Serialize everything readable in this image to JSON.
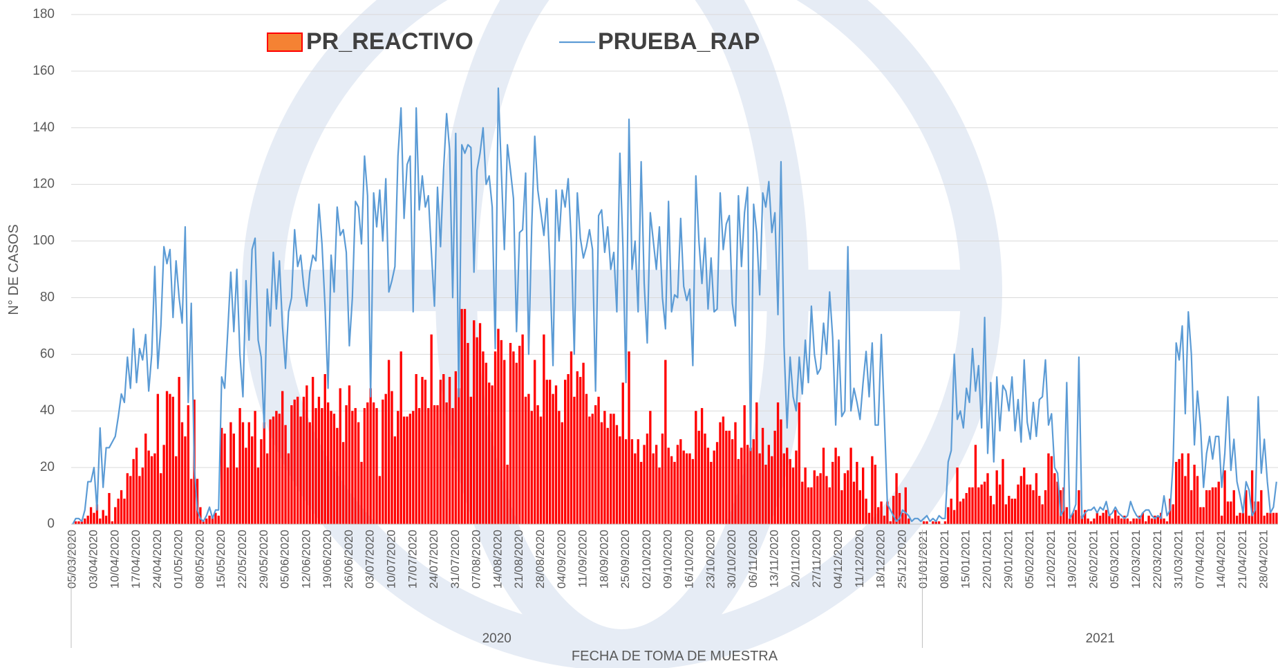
{
  "chart_data": {
    "type": "bar_line",
    "xlabel": "FECHA DE TOMA DE MUESTRA",
    "ylabel": "N° DE CASOS",
    "ylim": [
      0,
      180
    ],
    "yticks": [
      0,
      20,
      40,
      60,
      80,
      100,
      120,
      140,
      160,
      180
    ],
    "grid": true,
    "legend": "top",
    "groups": [
      "2020",
      "2021"
    ],
    "categories": [
      "05/03/2020",
      null,
      null,
      null,
      null,
      null,
      null,
      "03/04/2020",
      null,
      null,
      null,
      null,
      null,
      null,
      "10/04/2020",
      null,
      null,
      null,
      null,
      null,
      null,
      "17/04/2020",
      null,
      null,
      null,
      null,
      null,
      null,
      "24/04/2020",
      null,
      null,
      null,
      null,
      null,
      null,
      "01/05/2020",
      null,
      null,
      null,
      null,
      null,
      null,
      "08/05/2020",
      null,
      null,
      null,
      null,
      null,
      null,
      "15/05/2020",
      null,
      null,
      null,
      null,
      null,
      null,
      "22/05/2020",
      null,
      null,
      null,
      null,
      null,
      null,
      "29/05/2020",
      null,
      null,
      null,
      null,
      null,
      null,
      "05/06/2020",
      null,
      null,
      null,
      null,
      null,
      null,
      "12/06/2020",
      null,
      null,
      null,
      null,
      null,
      null,
      "19/06/2020",
      null,
      null,
      null,
      null,
      null,
      null,
      "26/06/2020",
      null,
      null,
      null,
      null,
      null,
      null,
      "03/07/2020",
      null,
      null,
      null,
      null,
      null,
      null,
      "10/07/2020",
      null,
      null,
      null,
      null,
      null,
      null,
      "17/07/2020",
      null,
      null,
      null,
      null,
      null,
      null,
      "24/07/2020",
      null,
      null,
      null,
      null,
      null,
      null,
      "31/07/2020",
      null,
      null,
      null,
      null,
      null,
      null,
      "07/08/2020",
      null,
      null,
      null,
      null,
      null,
      null,
      "14/08/2020",
      null,
      null,
      null,
      null,
      null,
      null,
      "21/08/2020",
      null,
      null,
      null,
      null,
      null,
      null,
      "28/08/2020",
      null,
      null,
      null,
      null,
      null,
      null,
      "04/09/2020",
      null,
      null,
      null,
      null,
      null,
      null,
      "11/09/2020",
      null,
      null,
      null,
      null,
      null,
      null,
      "18/09/2020",
      null,
      null,
      null,
      null,
      null,
      null,
      "25/09/2020",
      null,
      null,
      null,
      null,
      null,
      null,
      "02/10/2020",
      null,
      null,
      null,
      null,
      null,
      null,
      "09/10/2020",
      null,
      null,
      null,
      null,
      null,
      null,
      "16/10/2020",
      null,
      null,
      null,
      null,
      null,
      null,
      "23/10/2020",
      null,
      null,
      null,
      null,
      null,
      null,
      "30/10/2020",
      null,
      null,
      null,
      null,
      null,
      null,
      "06/11/2020",
      null,
      null,
      null,
      null,
      null,
      null,
      "13/11/2020",
      null,
      null,
      null,
      null,
      null,
      null,
      "20/11/2020",
      null,
      null,
      null,
      null,
      null,
      null,
      "27/11/2020",
      null,
      null,
      null,
      null,
      null,
      null,
      "04/12/2020",
      null,
      null,
      null,
      null,
      null,
      null,
      "11/12/2020",
      null,
      null,
      null,
      null,
      null,
      null,
      "18/12/2020",
      null,
      null,
      null,
      null,
      null,
      null,
      "25/12/2020",
      null,
      null,
      null,
      null,
      null,
      null,
      "01/01/2021",
      null,
      null,
      null,
      null,
      null,
      null,
      "08/01/2021",
      null,
      null,
      null,
      null,
      null,
      null,
      "15/01/2021",
      null,
      null,
      null,
      null,
      null,
      null,
      "22/01/2021",
      null,
      null,
      null,
      null,
      null,
      null,
      "29/01/2021",
      null,
      null,
      null,
      null,
      null,
      null,
      "05/02/2021",
      null,
      null,
      null,
      null,
      null,
      null,
      "12/02/2021",
      null,
      null,
      null,
      null,
      null,
      null,
      "19/02/2021",
      null,
      null,
      null,
      null,
      null,
      null,
      "26/02/2021",
      null,
      null,
      null,
      null,
      null,
      null,
      "05/03/2021",
      null,
      null,
      null,
      null,
      null,
      null,
      "12/03/2021",
      null,
      null,
      null,
      null,
      null,
      null,
      "22/03/2021",
      null,
      null,
      null,
      null,
      null,
      null,
      "31/03/2021",
      null,
      null,
      null,
      null,
      null,
      null,
      "07/04/2021",
      null,
      null,
      null,
      null,
      null,
      null,
      "14/04/2021",
      null,
      null,
      null,
      null,
      null,
      null,
      "21/04/2021",
      null,
      null,
      null,
      null,
      null,
      null,
      "28/04/2021",
      null,
      null,
      null,
      null
    ],
    "series": [
      {
        "name": "PR_REACTIVO",
        "type": "bar",
        "color": "#ff0000",
        "values": [
          0,
          1,
          1,
          1,
          2,
          3,
          6,
          4,
          7,
          2,
          5,
          3,
          11,
          1,
          6,
          9,
          12,
          9,
          18,
          17,
          23,
          27,
          17,
          20,
          32,
          26,
          24,
          25,
          46,
          18,
          28,
          47,
          46,
          45,
          24,
          52,
          36,
          31,
          42,
          16,
          44,
          16,
          6,
          1,
          2,
          3,
          3,
          4,
          3,
          34,
          32,
          20,
          36,
          32,
          20,
          41,
          36,
          27,
          36,
          31,
          40,
          20,
          30,
          36,
          25,
          37,
          38,
          40,
          39,
          47,
          35,
          25,
          42,
          44,
          45,
          38,
          45,
          49,
          36,
          52,
          41,
          45,
          41,
          53,
          43,
          40,
          39,
          34,
          48,
          29,
          42,
          49,
          40,
          41,
          36,
          22,
          41,
          43,
          48,
          43,
          41,
          17,
          44,
          46,
          58,
          47,
          31,
          40,
          61,
          38,
          38,
          39,
          40,
          53,
          41,
          52,
          51,
          41,
          67,
          42,
          42,
          51,
          53,
          43,
          52,
          41,
          54,
          48,
          76,
          76,
          64,
          45,
          72,
          66,
          71,
          61,
          57,
          50,
          49,
          61,
          69,
          65,
          58,
          21,
          64,
          61,
          57,
          63,
          67,
          45,
          46,
          40,
          58,
          42,
          38,
          67,
          51,
          51,
          46,
          49,
          40,
          36,
          51,
          53,
          61,
          45,
          54,
          52,
          57,
          46,
          38,
          39,
          42,
          45,
          36,
          40,
          34,
          39,
          39,
          35,
          31,
          50,
          30,
          61,
          30,
          25,
          30,
          22,
          28,
          32,
          40,
          25,
          28,
          20,
          32,
          58,
          27,
          24,
          22,
          28,
          30,
          26,
          25,
          25,
          23,
          40,
          33,
          41,
          32,
          27,
          22,
          26,
          29,
          36,
          38,
          33,
          33,
          30,
          36,
          23,
          27,
          42,
          28,
          27,
          30,
          43,
          25,
          34,
          21,
          28,
          24,
          33,
          43,
          37,
          25,
          27,
          23,
          20,
          26,
          43,
          15,
          20,
          13,
          13,
          19,
          17,
          18,
          27,
          17,
          13,
          22,
          27,
          24,
          12,
          18,
          19,
          27,
          15,
          22,
          12,
          20,
          9,
          4,
          24,
          21,
          6,
          8,
          3,
          8,
          1,
          10,
          18,
          11,
          4,
          13,
          2,
          0,
          0,
          0,
          0,
          1,
          1,
          0,
          1,
          1,
          1,
          0,
          1,
          6,
          9,
          5,
          20,
          8,
          9,
          11,
          13,
          13,
          28,
          13,
          14,
          15,
          18,
          10,
          7,
          19,
          14,
          23,
          7,
          10,
          9,
          9,
          14,
          17,
          20,
          14,
          14,
          12,
          18,
          10,
          7,
          12,
          25,
          24,
          18,
          15,
          12,
          13,
          6,
          2,
          4,
          5,
          12,
          3,
          5,
          2,
          1,
          2,
          4,
          3,
          4,
          5,
          3,
          2,
          5,
          3,
          2,
          3,
          2,
          1,
          2,
          2,
          3,
          4,
          1,
          3,
          2,
          3,
          3,
          4,
          2,
          1,
          9,
          7,
          22,
          23,
          25,
          17,
          25,
          12,
          21,
          17,
          6,
          6,
          12,
          12,
          13,
          13,
          15,
          3,
          19,
          8,
          8,
          12,
          3,
          4,
          4,
          12,
          3,
          19,
          8,
          8,
          12,
          3,
          4,
          4,
          4,
          4
        ]
      },
      {
        "name": "PRUEBA_RAP",
        "type": "line",
        "color": "#5b9bd5",
        "values": [
          0,
          2,
          2,
          1,
          5,
          15,
          15,
          20,
          5,
          34,
          13,
          27,
          27,
          29,
          31,
          38,
          46,
          43,
          59,
          48,
          69,
          50,
          62,
          58,
          67,
          47,
          60,
          91,
          55,
          70,
          98,
          92,
          97,
          73,
          93,
          80,
          71,
          105,
          43,
          78,
          20,
          5,
          2,
          1,
          3,
          6,
          2,
          5,
          5,
          52,
          48,
          68,
          89,
          68,
          90,
          60,
          45,
          86,
          65,
          97,
          101,
          65,
          59,
          34,
          83,
          70,
          96,
          76,
          93,
          70,
          55,
          75,
          80,
          104,
          91,
          95,
          84,
          77,
          89,
          95,
          93,
          113,
          99,
          77,
          48,
          95,
          82,
          112,
          102,
          104,
          96,
          63,
          80,
          114,
          112,
          99,
          130,
          116,
          45,
          117,
          105,
          118,
          100,
          122,
          82,
          86,
          91,
          130,
          147,
          108,
          127,
          130,
          75,
          147,
          111,
          123,
          112,
          116,
          96,
          77,
          119,
          98,
          125,
          145,
          132,
          80,
          138,
          45,
          134,
          131,
          134,
          133,
          89,
          125,
          131,
          140,
          120,
          123,
          112,
          62,
          154,
          125,
          97,
          134,
          125,
          115,
          68,
          103,
          104,
          124,
          60,
          105,
          137,
          118,
          110,
          102,
          115,
          90,
          56,
          118,
          100,
          118,
          112,
          122,
          100,
          60,
          117,
          101,
          94,
          98,
          104,
          97,
          47,
          109,
          111,
          96,
          105,
          90,
          96,
          75,
          131,
          98,
          50,
          143,
          90,
          100,
          75,
          128,
          85,
          64,
          110,
          100,
          90,
          105,
          80,
          69,
          114,
          75,
          81,
          80,
          108,
          84,
          79,
          83,
          56,
          123,
          100,
          85,
          101,
          76,
          94,
          75,
          76,
          117,
          97,
          106,
          109,
          78,
          70,
          116,
          91,
          110,
          119,
          26,
          113,
          103,
          81,
          117,
          112,
          121,
          103,
          110,
          74,
          128,
          63,
          34,
          59,
          45,
          40,
          59,
          46,
          65,
          50,
          77,
          60,
          53,
          55,
          71,
          60,
          82,
          66,
          35,
          65,
          38,
          40,
          98,
          40,
          48,
          43,
          37,
          50,
          61,
          45,
          64,
          35,
          35,
          67,
          38,
          7,
          5,
          3,
          1,
          2,
          5,
          4,
          3,
          1,
          2,
          2,
          1,
          2,
          3,
          1,
          2,
          1,
          3,
          2,
          2,
          22,
          26,
          60,
          37,
          40,
          34,
          48,
          43,
          62,
          47,
          56,
          34,
          73,
          25,
          50,
          22,
          52,
          33,
          49,
          47,
          40,
          52,
          33,
          44,
          29,
          58,
          36,
          30,
          43,
          31,
          44,
          45,
          58,
          35,
          39,
          20,
          18,
          3,
          5,
          50,
          2,
          4,
          7,
          59,
          2,
          4,
          5,
          5,
          6,
          4,
          6,
          5,
          8,
          3,
          4,
          6,
          4,
          3,
          2,
          3,
          8,
          5,
          3,
          2,
          4,
          5,
          5,
          3,
          2,
          3,
          2,
          10,
          3,
          5,
          22,
          64,
          58,
          70,
          39,
          75,
          60,
          28,
          47,
          35,
          13,
          25,
          31,
          23,
          31,
          31,
          13,
          25,
          45,
          19,
          30,
          15,
          10,
          4,
          15,
          12,
          3,
          5,
          45,
          18,
          30,
          15,
          4,
          6,
          15
        ]
      }
    ]
  }
}
